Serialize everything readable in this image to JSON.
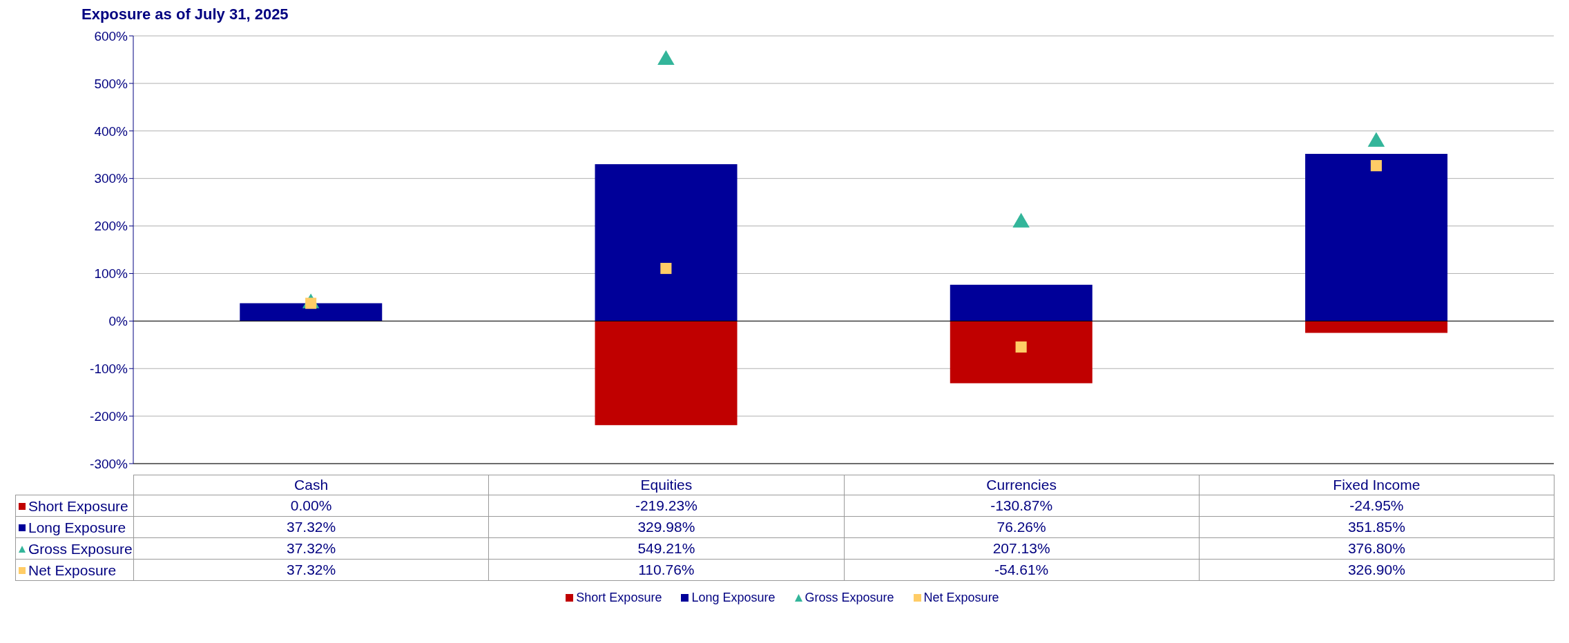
{
  "chart_data": {
    "type": "bar",
    "title": "Exposure as of July 31, 2025",
    "categories": [
      "Cash",
      "Equities",
      "Currencies",
      "Fixed Income"
    ],
    "stacked": true,
    "series": [
      {
        "name": "Short Exposure",
        "color": "#c00000",
        "values": [
          0,
          -219.23,
          -130.87,
          -24.95
        ],
        "value_labels": [
          "0.00%",
          "-219.23%",
          "-130.87%",
          "-24.95%"
        ]
      },
      {
        "name": "Long Exposure",
        "color": "#000099",
        "values": [
          37.32,
          329.98,
          76.26,
          351.85
        ],
        "value_labels": [
          "37.32%",
          "329.98%",
          "76.26%",
          "351.85%"
        ]
      },
      {
        "name": "Gross Exposure",
        "type": "scatter",
        "marker": "triangle",
        "color": "#33b59a",
        "values": [
          37.32,
          549.21,
          207.13,
          376.8
        ],
        "value_labels": [
          "37.32%",
          "549.21%",
          "207.13%",
          "376.80%"
        ]
      },
      {
        "name": "Net Exposure",
        "type": "scatter",
        "marker": "square",
        "color": "#ffcc66",
        "values": [
          37.32,
          110.76,
          -54.61,
          326.9
        ],
        "value_labels": [
          "37.32%",
          "110.76%",
          "-54.61%",
          "326.90%"
        ]
      }
    ],
    "ylim": [
      -300,
      600
    ],
    "yticks": [
      {
        "value": -300,
        "label": "-300%"
      },
      {
        "value": -200,
        "label": "-200%"
      },
      {
        "value": -100,
        "label": "-100%"
      },
      {
        "value": 0,
        "label": "0%"
      },
      {
        "value": 100,
        "label": "100%"
      },
      {
        "value": 200,
        "label": "200%"
      },
      {
        "value": 300,
        "label": "300%"
      },
      {
        "value": 400,
        "label": "400%"
      },
      {
        "value": 500,
        "label": "500%"
      },
      {
        "value": 600,
        "label": "600%"
      }
    ],
    "ref_lines": [
      {
        "axis": "y",
        "value": 0,
        "color": "#000000"
      }
    ],
    "grid": "y",
    "legend": "bottom"
  }
}
